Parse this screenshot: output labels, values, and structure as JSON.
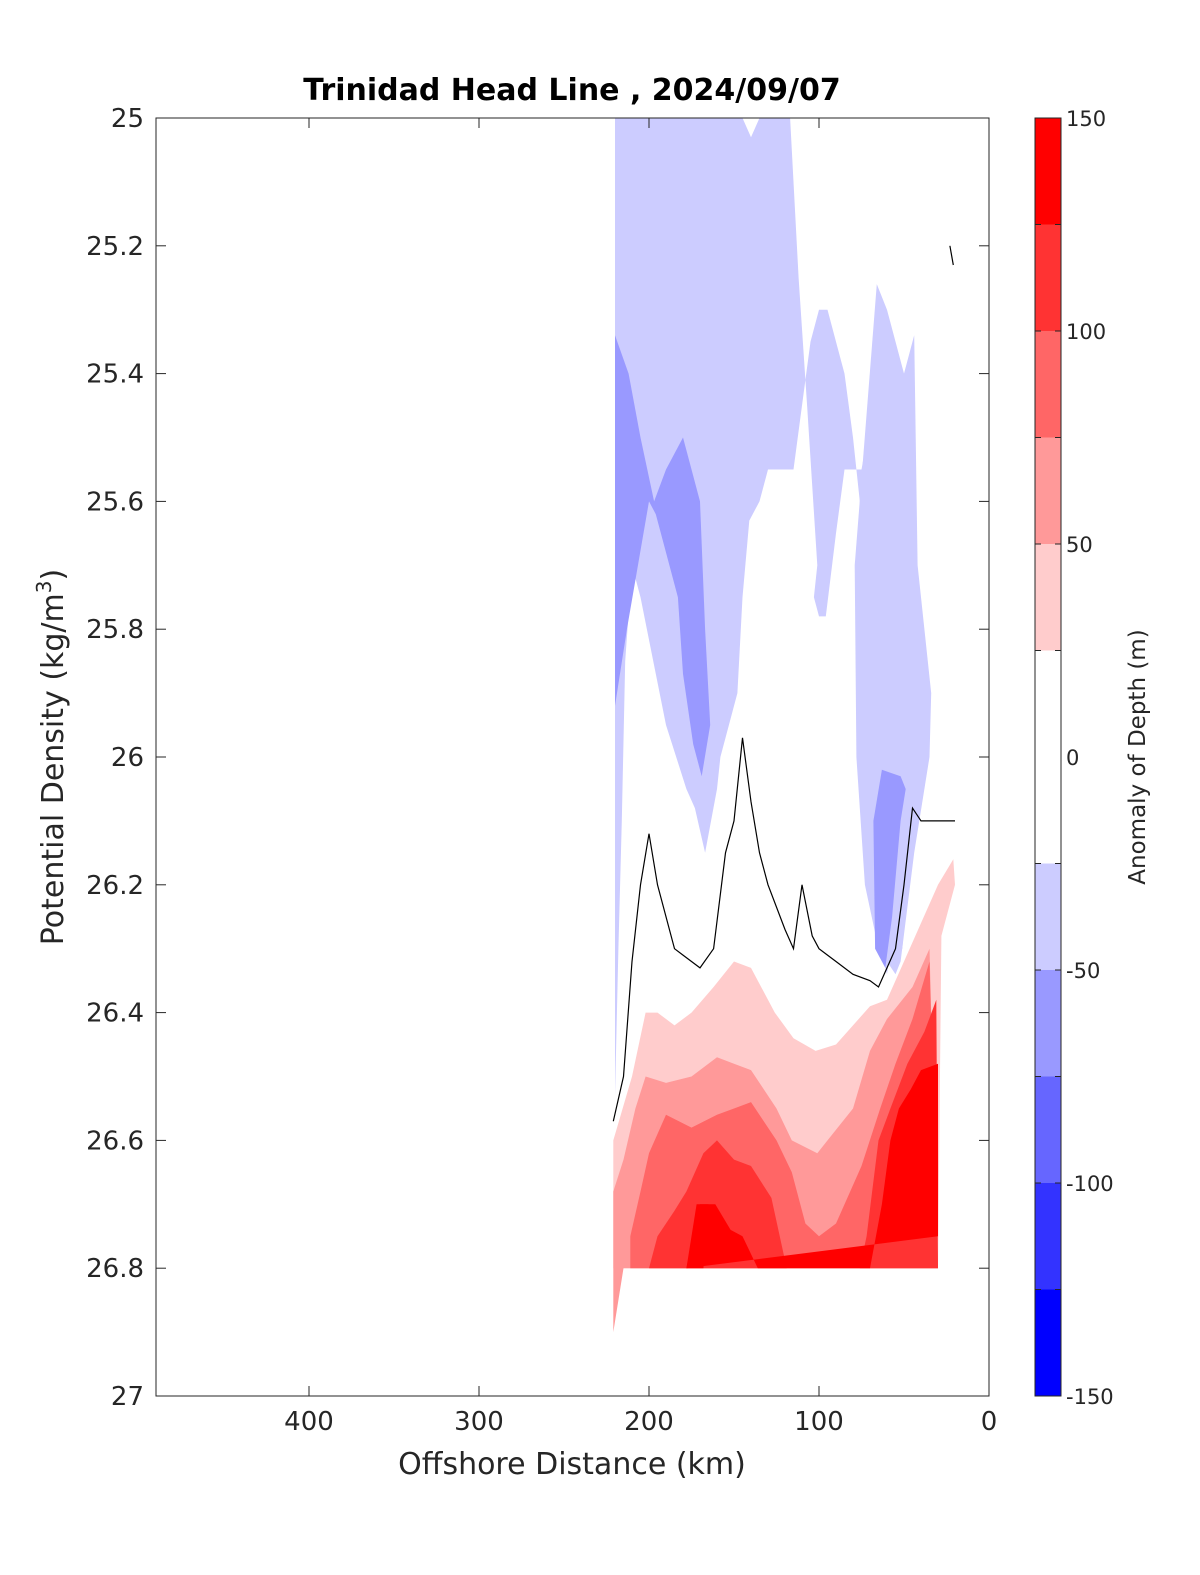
{
  "chart_data": {
    "type": "heatmap",
    "title": "Trinidad Head Line , 2024/09/07",
    "xlabel": "Offshore Distance (km)",
    "ylabel": "Potential Density (kg/m",
    "ylabel_superscript": "3",
    "ylabel_suffix": ")",
    "xlim": [
      490,
      0
    ],
    "ylim": [
      25,
      27
    ],
    "x_reversed": true,
    "y_reversed": true,
    "xticks": [
      400,
      300,
      200,
      100,
      0
    ],
    "yticks": [
      25,
      25.2,
      25.4,
      25.6,
      25.8,
      26,
      26.2,
      26.4,
      26.6,
      26.8,
      27
    ],
    "colorbar": {
      "label": "Anomaly of Depth (m)",
      "range": [
        -150,
        150
      ],
      "ticks": [
        150,
        100,
        50,
        0,
        -50,
        -100,
        -150
      ],
      "levels": [
        {
          "range": [
            -150,
            -125
          ],
          "color": "#0000ff"
        },
        {
          "range": [
            -125,
            -100
          ],
          "color": "#3333ff"
        },
        {
          "range": [
            -100,
            -75
          ],
          "color": "#6666ff"
        },
        {
          "range": [
            -75,
            -50
          ],
          "color": "#9999ff"
        },
        {
          "range": [
            -50,
            -25
          ],
          "color": "#ccccff"
        },
        {
          "range": [
            -25,
            25
          ],
          "color": "#ffffff"
        },
        {
          "range": [
            25,
            50
          ],
          "color": "#ffcccc"
        },
        {
          "range": [
            50,
            75
          ],
          "color": "#ff9999"
        },
        {
          "range": [
            75,
            100
          ],
          "color": "#ff6666"
        },
        {
          "range": [
            100,
            125
          ],
          "color": "#ff3333"
        },
        {
          "range": [
            125,
            150
          ],
          "color": "#ff0000"
        }
      ]
    },
    "regions": [
      {
        "level": -25,
        "color": "#ccccff",
        "points": [
          [
            220,
            25.0
          ],
          [
            145,
            25.0
          ],
          [
            140,
            25.03
          ],
          [
            135,
            25.0
          ],
          [
            117,
            25.0
          ],
          [
            112,
            25.25
          ],
          [
            107,
            25.45
          ],
          [
            101,
            25.7
          ],
          [
            103,
            25.75
          ],
          [
            100,
            25.78
          ],
          [
            96,
            25.78
          ],
          [
            90,
            25.65
          ],
          [
            85,
            25.55
          ],
          [
            75,
            25.55
          ],
          [
            65,
            25.4
          ],
          [
            55,
            25.35
          ],
          [
            50,
            25.75
          ],
          [
            54,
            25.9
          ],
          [
            47,
            25.95
          ],
          [
            45,
            26.1
          ],
          [
            51,
            26.3
          ],
          [
            58,
            26.3
          ],
          [
            60,
            26.34
          ],
          [
            64,
            26.3
          ],
          [
            75,
            26.0
          ],
          [
            77,
            25.7
          ],
          [
            76,
            25.6
          ],
          [
            80,
            25.5
          ],
          [
            85,
            25.4
          ],
          [
            90,
            25.35
          ],
          [
            95,
            25.3
          ],
          [
            100,
            25.3
          ],
          [
            105,
            25.35
          ],
          [
            110,
            25.45
          ],
          [
            115,
            25.55
          ],
          [
            130,
            25.55
          ],
          [
            135,
            25.6
          ],
          [
            141,
            25.63
          ],
          [
            145,
            25.75
          ],
          [
            148,
            25.9
          ],
          [
            158,
            26.0
          ],
          [
            160,
            26.05
          ],
          [
            167,
            26.15
          ],
          [
            173,
            26.08
          ],
          [
            178,
            26.05
          ],
          [
            190,
            25.95
          ],
          [
            205,
            25.75
          ],
          [
            210,
            25.7
          ],
          [
            214,
            25.85
          ],
          [
            216,
            26.1
          ],
          [
            218,
            26.3
          ],
          [
            220,
            26.53
          ]
        ]
      },
      {
        "level": -25,
        "color": "#ccccff",
        "points": [
          [
            79,
            25.7
          ],
          [
            66,
            25.26
          ],
          [
            60,
            25.3
          ],
          [
            50,
            25.4
          ],
          [
            44,
            25.34
          ],
          [
            42,
            25.7
          ],
          [
            34,
            25.9
          ],
          [
            35,
            26.0
          ],
          [
            44,
            26.15
          ],
          [
            52,
            26.32
          ],
          [
            55,
            26.34
          ],
          [
            65,
            26.3
          ],
          [
            73,
            26.2
          ],
          [
            78,
            26.0
          ]
        ]
      },
      {
        "level": -50,
        "color": "#9999ff",
        "points": [
          [
            220,
            25.34
          ],
          [
            212,
            25.4
          ],
          [
            205,
            25.5
          ],
          [
            197,
            25.6
          ],
          [
            190,
            25.55
          ],
          [
            180,
            25.5
          ],
          [
            170,
            25.6
          ],
          [
            167,
            25.8
          ],
          [
            164,
            25.95
          ],
          [
            169,
            26.03
          ],
          [
            174,
            25.98
          ],
          [
            180,
            25.87
          ],
          [
            183,
            25.75
          ],
          [
            188,
            25.7
          ],
          [
            196,
            25.62
          ],
          [
            200,
            25.6
          ],
          [
            213,
            25.8
          ],
          [
            220,
            25.92
          ]
        ]
      },
      {
        "level": -50,
        "color": "#9999ff",
        "points": [
          [
            63,
            26.02
          ],
          [
            68,
            26.1
          ],
          [
            67,
            26.3
          ],
          [
            61,
            26.33
          ],
          [
            57,
            26.25
          ],
          [
            52,
            26.1
          ],
          [
            49,
            26.05
          ],
          [
            52,
            26.03
          ]
        ]
      },
      {
        "level": 25,
        "color": "#ffcccc",
        "points": [
          [
            221,
            26.6
          ],
          [
            210,
            26.5
          ],
          [
            202,
            26.4
          ],
          [
            195,
            26.4
          ],
          [
            185,
            26.42
          ],
          [
            175,
            26.4
          ],
          [
            162,
            26.36
          ],
          [
            150,
            26.32
          ],
          [
            140,
            26.33
          ],
          [
            126,
            26.4
          ],
          [
            115,
            26.44
          ],
          [
            102,
            26.46
          ],
          [
            90,
            26.45
          ],
          [
            80,
            26.42
          ],
          [
            70,
            26.39
          ],
          [
            60,
            26.38
          ],
          [
            50,
            26.32
          ],
          [
            40,
            26.26
          ],
          [
            30,
            26.2
          ],
          [
            21,
            26.16
          ],
          [
            20,
            26.2
          ],
          [
            28,
            26.28
          ],
          [
            30,
            26.8
          ],
          [
            221,
            26.8
          ]
        ]
      },
      {
        "level": 50,
        "color": "#ff9999",
        "points": [
          [
            221,
            26.9
          ],
          [
            221,
            26.68
          ],
          [
            215,
            26.63
          ],
          [
            208,
            26.55
          ],
          [
            202,
            26.5
          ],
          [
            190,
            26.51
          ],
          [
            175,
            26.5
          ],
          [
            160,
            26.47
          ],
          [
            150,
            26.48
          ],
          [
            140,
            26.49
          ],
          [
            125,
            26.55
          ],
          [
            116,
            26.6
          ],
          [
            101,
            26.62
          ],
          [
            95,
            26.6
          ],
          [
            80,
            26.55
          ],
          [
            70,
            26.46
          ],
          [
            60,
            26.41
          ],
          [
            45,
            26.36
          ],
          [
            35,
            26.3
          ],
          [
            30,
            26.8
          ],
          [
            215,
            26.8
          ]
        ]
      },
      {
        "level": 75,
        "color": "#ff6666",
        "points": [
          [
            211,
            26.8
          ],
          [
            211,
            26.75
          ],
          [
            205,
            26.68
          ],
          [
            200,
            26.62
          ],
          [
            190,
            26.56
          ],
          [
            175,
            26.58
          ],
          [
            160,
            26.56
          ],
          [
            150,
            26.55
          ],
          [
            140,
            26.54
          ],
          [
            125,
            26.6
          ],
          [
            116,
            26.65
          ],
          [
            108,
            26.73
          ],
          [
            100,
            26.75
          ],
          [
            90,
            26.73
          ],
          [
            75,
            26.64
          ],
          [
            64,
            26.55
          ],
          [
            55,
            26.48
          ],
          [
            45,
            26.41
          ],
          [
            35,
            26.32
          ],
          [
            30,
            26.8
          ]
        ]
      },
      {
        "level": 100,
        "color": "#ff3333",
        "points": [
          [
            200,
            26.8
          ],
          [
            195,
            26.75
          ],
          [
            185,
            26.71
          ],
          [
            178,
            26.68
          ],
          [
            168,
            26.62
          ],
          [
            160,
            26.6
          ],
          [
            150,
            26.63
          ],
          [
            140,
            26.64
          ],
          [
            128,
            26.69
          ],
          [
            119,
            26.8
          ],
          [
            76,
            26.8
          ],
          [
            72,
            26.75
          ],
          [
            65,
            26.6
          ],
          [
            58,
            26.55
          ],
          [
            48,
            26.48
          ],
          [
            38,
            26.43
          ],
          [
            31,
            26.38
          ],
          [
            30,
            26.8
          ]
        ]
      },
      {
        "level": 125,
        "color": "#ff0000",
        "points": [
          [
            178,
            26.8
          ],
          [
            172,
            26.7
          ],
          [
            161,
            26.7
          ],
          [
            152,
            26.74
          ],
          [
            145,
            26.75
          ],
          [
            136,
            26.8
          ],
          [
            95,
            26.8
          ],
          [
            70,
            26.8
          ],
          [
            63,
            26.7
          ],
          [
            58,
            26.6
          ],
          [
            53,
            26.55
          ],
          [
            46,
            26.52
          ],
          [
            40,
            26.49
          ],
          [
            30,
            26.48
          ],
          [
            30,
            26.75
          ]
        ]
      },
      {
        "level": 125,
        "color": "#ff0000",
        "points": [
          [
            178,
            26.8
          ],
          [
            170,
            26.7
          ],
          [
            165,
            26.7
          ],
          [
            168,
            26.8
          ]
        ]
      }
    ],
    "zero_contours": [
      {
        "points": [
          [
            221,
            26.57
          ],
          [
            215,
            26.5
          ],
          [
            210,
            26.32
          ],
          [
            205,
            26.2
          ],
          [
            200,
            26.12
          ],
          [
            195,
            26.2
          ],
          [
            185,
            26.3
          ],
          [
            180,
            26.31
          ],
          [
            170,
            26.33
          ],
          [
            162,
            26.3
          ],
          [
            155,
            26.15
          ],
          [
            150,
            26.1
          ],
          [
            145,
            25.97
          ],
          [
            140,
            26.07
          ],
          [
            135,
            26.15
          ],
          [
            130,
            26.2
          ],
          [
            120,
            26.27
          ],
          [
            115,
            26.3
          ],
          [
            110,
            26.2
          ],
          [
            104,
            26.28
          ],
          [
            100,
            26.3
          ],
          [
            95,
            26.31
          ],
          [
            90,
            26.32
          ],
          [
            80,
            26.34
          ],
          [
            70,
            26.35
          ],
          [
            65,
            26.36
          ],
          [
            55,
            26.3
          ],
          [
            50,
            26.2
          ],
          [
            45,
            26.08
          ],
          [
            40,
            26.1
          ],
          [
            20,
            26.1
          ]
        ]
      },
      {
        "points": [
          [
            23,
            25.2
          ],
          [
            21,
            25.23
          ]
        ]
      }
    ]
  }
}
